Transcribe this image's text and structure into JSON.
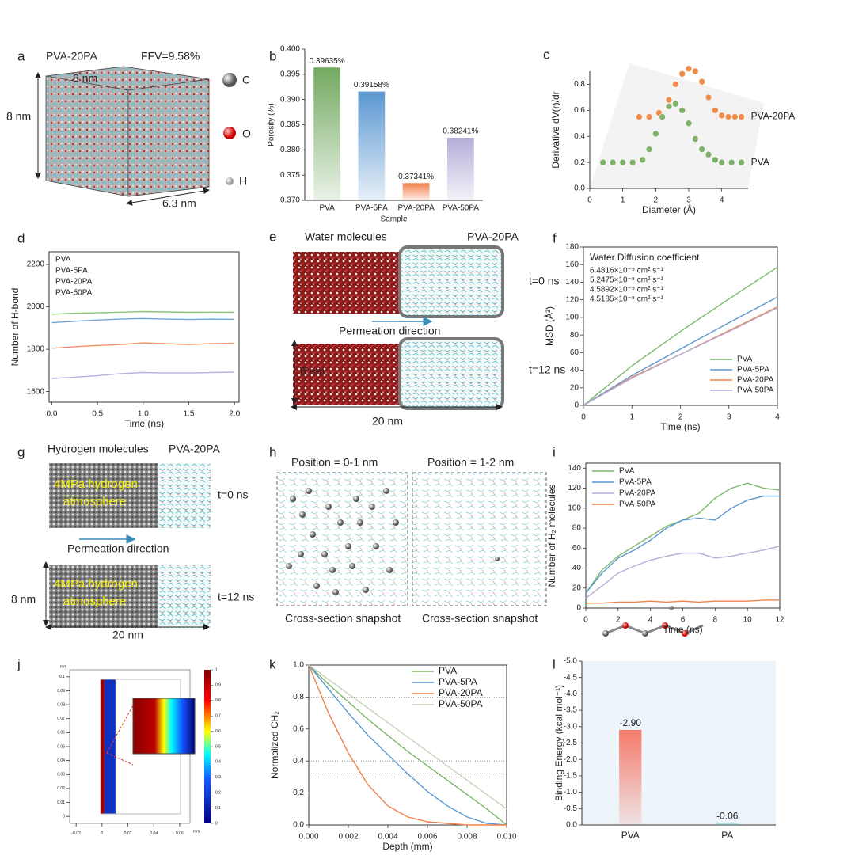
{
  "chart_data": [
    {
      "type": "bar",
      "label": "b",
      "categories": [
        "PVA",
        "PVA-5PA",
        "PVA-20PA",
        "PVA-50PA"
      ],
      "values": [
        0.39635,
        0.39158,
        0.37341,
        0.38241
      ],
      "value_labels": [
        "0.39635%",
        "0.39158%",
        "0.37341%",
        "0.38241%"
      ],
      "colors": [
        "#72a960",
        "#5b97d1",
        "#f3814a",
        "#b3aed8"
      ],
      "ylim": [
        0.37,
        0.4
      ],
      "yticks": [
        {
          "value": 0.37,
          "label": "0.370"
        },
        0.375,
        {
          "value": 0.38,
          "label": "0.380"
        },
        0.385,
        {
          "value": 0.39,
          "label": "0.390"
        },
        0.395,
        {
          "value": 0.4,
          "label": "0.400"
        }
      ],
      "xlabel": "Sample",
      "ylabel": "Porosity (%)"
    },
    {
      "type": "scatter",
      "label": "c",
      "xlim": [
        0,
        4.8
      ],
      "xticks": [
        0,
        1,
        2,
        3,
        4
      ],
      "ylim": [
        0,
        0.9
      ],
      "yticks": [
        {
          "value": 0,
          "label": "0.0"
        },
        0.2,
        0.4,
        0.6,
        0.8
      ],
      "xlabel": "Diameter (Å)",
      "ylabel": "Derivative dV(r)/dr",
      "legend": "line-end",
      "series": [
        {
          "name": "PVA-20PA",
          "color": "#ef8c4c",
          "x": [
            1.5,
            1.8,
            2.1,
            2.4,
            2.6,
            2.8,
            3.0,
            3.2,
            3.4,
            3.6,
            3.8,
            4.0,
            4.2,
            4.4,
            4.6
          ],
          "values": [
            0.55,
            0.55,
            0.58,
            0.68,
            0.8,
            0.88,
            0.92,
            0.9,
            0.82,
            0.7,
            0.6,
            0.56,
            0.55,
            0.55,
            0.55
          ]
        },
        {
          "name": "PVA",
          "color": "#7fb069",
          "x": [
            0.4,
            0.7,
            1.0,
            1.3,
            1.6,
            1.8,
            2.0,
            2.2,
            2.4,
            2.6,
            2.8,
            3.0,
            3.2,
            3.4,
            3.6,
            3.8,
            4.0,
            4.3,
            4.6
          ],
          "values": [
            0.2,
            0.2,
            0.2,
            0.2,
            0.22,
            0.3,
            0.42,
            0.55,
            0.63,
            0.65,
            0.6,
            0.5,
            0.38,
            0.3,
            0.26,
            0.22,
            0.2,
            0.2,
            0.2
          ]
        }
      ]
    },
    {
      "type": "line",
      "label": "d",
      "x": [
        0,
        0.25,
        0.5,
        0.75,
        1.0,
        1.25,
        1.5,
        1.75,
        2.0
      ],
      "xlim": [
        -0.03,
        2.05
      ],
      "xticks": [
        {
          "value": 0,
          "label": "0.0"
        },
        0.5,
        {
          "value": 1,
          "label": "1.0"
        },
        1.5,
        {
          "value": 2,
          "label": "2.0"
        }
      ],
      "ylim": [
        1550,
        2260
      ],
      "yticks": [
        1600,
        1800,
        2000,
        2200
      ],
      "xlabel": "Time (ns)",
      "ylabel": "Number of H-bond",
      "legend": "upper left",
      "legend_style": "text",
      "series": [
        {
          "name": "PVA",
          "color": "#8cc47a",
          "values": [
            1965,
            1970,
            1972,
            1975,
            1978,
            1976,
            1974,
            1975,
            1974
          ]
        },
        {
          "name": "PVA-5PA",
          "color": "#6ea6dc",
          "values": [
            1925,
            1932,
            1938,
            1942,
            1945,
            1942,
            1940,
            1942,
            1941
          ]
        },
        {
          "name": "PVA-20PA",
          "color": "#f49060",
          "values": [
            1805,
            1812,
            1818,
            1822,
            1830,
            1826,
            1822,
            1826,
            1828
          ]
        },
        {
          "name": "PVA-50PA",
          "color": "#b7b2e0",
          "values": [
            1662,
            1668,
            1675,
            1685,
            1690,
            1688,
            1688,
            1690,
            1692
          ]
        }
      ]
    },
    {
      "type": "line",
      "label": "f",
      "x": [
        0,
        1,
        2,
        3,
        4
      ],
      "xlim": [
        0,
        4
      ],
      "xticks": [
        0,
        1,
        2,
        3,
        4
      ],
      "ylim": [
        0,
        180
      ],
      "yticks": [
        0,
        20,
        40,
        60,
        80,
        100,
        120,
        140,
        160,
        180
      ],
      "xlabel": "Time (ns)",
      "ylabel": "MSD (Å²)",
      "legend": "lower right",
      "annotation": "Water Diffusion coefficient",
      "series": [
        {
          "name": "PVA",
          "color": "#7db86a",
          "coefficient": "6.4816×10⁻⁵ cm² s⁻¹",
          "values": [
            0,
            45,
            84,
            121,
            157
          ]
        },
        {
          "name": "PVA-5PA",
          "color": "#5b97d1",
          "coefficient": "5.2475×10⁻⁵ cm² s⁻¹",
          "values": [
            0,
            34,
            64,
            94,
            123
          ]
        },
        {
          "name": "PVA-20PA",
          "color": "#f0824c",
          "coefficient": "4.5892×10⁻⁵ cm² s⁻¹",
          "values": [
            0,
            32,
            58,
            85,
            112
          ]
        },
        {
          "name": "PVA-50PA",
          "color": "#b3aed8",
          "coefficient": "4.5185×10⁻⁵ cm² s⁻¹",
          "values": [
            0,
            31,
            58,
            84,
            111
          ]
        }
      ]
    },
    {
      "type": "line",
      "label": "i",
      "x": [
        0,
        1,
        2,
        3,
        4,
        5,
        6,
        7,
        8,
        9,
        10,
        11,
        12
      ],
      "xlim": [
        0,
        12
      ],
      "xticks": [
        0,
        2,
        4,
        6,
        8,
        10,
        12
      ],
      "ylim": [
        0,
        145
      ],
      "yticks": [
        0,
        20,
        40,
        60,
        80,
        100,
        120,
        140
      ],
      "xlabel": "Time (ns)",
      "ylabel": "Number of H₂ molecules",
      "legend": "upper left",
      "series": [
        {
          "name": "PVA",
          "color": "#7db86a",
          "values": [
            15,
            38,
            52,
            62,
            72,
            82,
            88,
            95,
            110,
            120,
            125,
            120,
            118
          ]
        },
        {
          "name": "PVA-5PA",
          "color": "#5b97d1",
          "values": [
            15,
            35,
            50,
            58,
            68,
            80,
            88,
            90,
            88,
            100,
            108,
            112,
            112
          ]
        },
        {
          "name": "PVA-20PA",
          "color": "#b3aed8",
          "values": [
            10,
            22,
            35,
            42,
            48,
            52,
            55,
            55,
            50,
            52,
            55,
            58,
            62
          ]
        },
        {
          "name": "PVA-50PA",
          "color": "#f0824c",
          "values": [
            5,
            5,
            6,
            6,
            7,
            6,
            7,
            6,
            7,
            7,
            7,
            8,
            8
          ]
        }
      ]
    },
    {
      "type": "line",
      "label": "k",
      "x": [
        0,
        0.001,
        0.002,
        0.003,
        0.004,
        0.005,
        0.006,
        0.007,
        0.008,
        0.009,
        0.01
      ],
      "xlim": [
        0,
        0.01
      ],
      "xticks": [
        {
          "value": 0,
          "label": "0.000"
        },
        0.002,
        0.004,
        0.006,
        0.008,
        {
          "value": 0.01,
          "label": "0.010"
        }
      ],
      "ylim": [
        0,
        1
      ],
      "yticks": [
        {
          "value": 0,
          "label": "0.0"
        },
        0.2,
        0.4,
        0.6,
        0.8,
        {
          "value": 1,
          "label": "1.0"
        }
      ],
      "xlabel": "Depth (mm)",
      "ylabel": "Normalized CH₂",
      "legend": "upper right",
      "reference_lines": [
        0.8,
        0.4,
        0.3
      ],
      "series": [
        {
          "name": "PVA",
          "color": "#7db86a",
          "values": [
            1,
            0.88,
            0.77,
            0.66,
            0.56,
            0.46,
            0.37,
            0.28,
            0.19,
            0.1,
            0.0
          ]
        },
        {
          "name": "PVA-5PA",
          "color": "#5b97d1",
          "values": [
            1,
            0.85,
            0.7,
            0.56,
            0.44,
            0.32,
            0.21,
            0.12,
            0.05,
            0.01,
            0
          ]
        },
        {
          "name": "PVA-20PA",
          "color": "#f0824c",
          "values": [
            1,
            0.7,
            0.45,
            0.25,
            0.12,
            0.05,
            0.02,
            0.01,
            0,
            0,
            0
          ]
        },
        {
          "name": "PVA-50PA",
          "color": "#c6d4b8",
          "values": [
            1,
            0.91,
            0.82,
            0.73,
            0.64,
            0.55,
            0.46,
            0.37,
            0.28,
            0.19,
            0.1
          ]
        }
      ]
    },
    {
      "type": "bar",
      "label": "l",
      "categories": [
        "PVA",
        "PA"
      ],
      "values": [
        -2.9,
        -0.06
      ],
      "value_labels": [
        "-2.90",
        "-0.06"
      ],
      "colors": [
        "#f47a6a",
        "#8dd4cf"
      ],
      "value_label_color": "#222222",
      "background": "#eef5fa",
      "ylim": [
        0,
        -5
      ],
      "yticks": [
        {
          "value": -5,
          "label": "-5.0"
        },
        -4.5,
        {
          "value": -4,
          "label": "-4.0"
        },
        -3.5,
        {
          "value": -3,
          "label": "-3.0"
        },
        -2.5,
        {
          "value": -2,
          "label": "-2.0"
        },
        -1.5,
        {
          "value": -1,
          "label": "-1.0"
        },
        -0.5,
        {
          "value": 0,
          "label": "0.0"
        }
      ],
      "ylabel": "Binding Energy (kcal mol⁻¹)"
    },
    {
      "type": "heatmap",
      "label": "j",
      "units": "mm",
      "xlim": [
        -0.025,
        0.068
      ],
      "xticks": [
        -0.02,
        0,
        0.02,
        0.04,
        0.06
      ],
      "ylim": [
        -0.005,
        0.105
      ],
      "yticks": [
        0,
        0.01,
        0.02,
        0.03,
        0.04,
        0.05,
        0.06,
        0.07,
        0.08,
        0.09,
        0.1
      ],
      "colorbar_lim": [
        0,
        1
      ],
      "colorbar_ticks": [
        0,
        0.1,
        0.2,
        0.3,
        0.4,
        0.5,
        0.6,
        0.7,
        0.8,
        0.9,
        1
      ]
    }
  ],
  "panels": {
    "a": {
      "label": "a",
      "title": "PVA-20PA",
      "ffv": "FFV=9.58%",
      "edge_top": "8 nm",
      "edge_left": "8 nm",
      "edge_depth": "6.3 nm",
      "atoms": [
        "C",
        "O",
        "H"
      ]
    },
    "e": {
      "label": "e",
      "left_title": "Water molecules",
      "right_title": "PVA-20PA",
      "time_start": "t=0 ns",
      "direction": "Permeation direction",
      "time_end": "t=12 ns",
      "height": "8 nm",
      "length": "20 nm"
    },
    "g": {
      "label": "g",
      "left_title": "Hydrogen molecules",
      "right_title": "PVA-20PA",
      "atmosphere": [
        "4MPa hydrogen",
        "atmosphere"
      ],
      "time_start": "t=0 ns",
      "direction": "Permeation direction",
      "time_end": "t=12 ns",
      "height": "8 nm",
      "length": "20 nm"
    },
    "h": {
      "label": "h",
      "left_title": "Position = 0-1 nm",
      "right_title": "Position = 1-2 nm",
      "caption": "Cross-section snapshot"
    }
  }
}
